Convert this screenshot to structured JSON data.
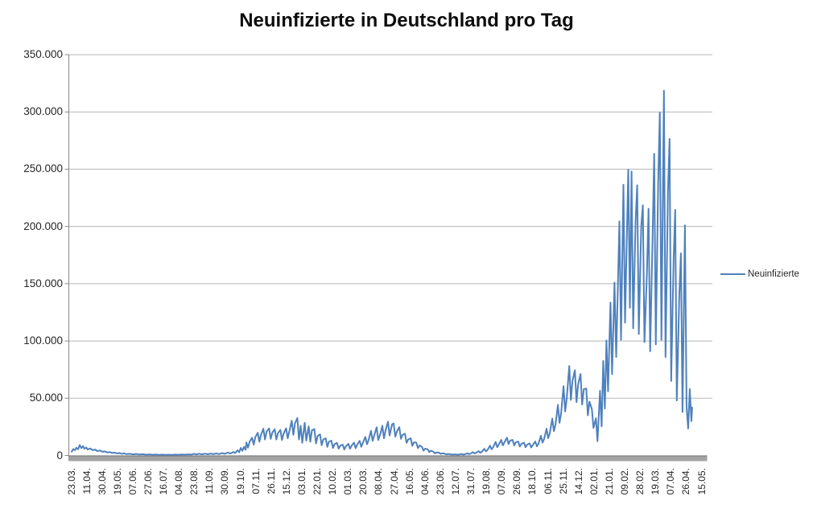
{
  "chart_data": {
    "type": "line",
    "title": "Neuinfizierte in Deutschland pro Tag",
    "legend": [
      "Neuinfizierte"
    ],
    "legend_position": "right",
    "grid": true,
    "background": "#ffffff",
    "ylim": [
      0,
      350000
    ],
    "y_tick_interval": 50000,
    "y_tick_labels": [
      "0",
      "50.000",
      "100.000",
      "150.000",
      "200.000",
      "250.000",
      "300.000",
      "350.000"
    ],
    "x_tick_interval_days": 19,
    "x_tick_labels": [
      "23.03.",
      "11.04.",
      "30.04.",
      "19.05.",
      "07.06.",
      "27.06.",
      "16.07.",
      "04.08.",
      "23.08.",
      "11.09.",
      "30.09.",
      "19.10.",
      "07.11.",
      "26.11.",
      "15.12.",
      "03.01.",
      "22.01.",
      "10.02.",
      "01.03.",
      "20.03.",
      "08.04.",
      "27.04.",
      "16.05.",
      "04.06.",
      "23.06.",
      "12.07.",
      "31.07.",
      "19.08.",
      "07.09.",
      "26.09.",
      "18.10.",
      "06.11.",
      "25.11.",
      "14.12.",
      "02.01.",
      "21.01.",
      "09.02.",
      "28.02.",
      "19.03.",
      "07.04.",
      "26.04.",
      "15.05."
    ],
    "series": [
      {
        "name": "Neuinfizierte",
        "color": "#4F81BD",
        "points": [
          [
            0,
            3200
          ],
          [
            2,
            5600
          ],
          [
            4,
            4600
          ],
          [
            6,
            6800
          ],
          [
            8,
            5400
          ],
          [
            10,
            9200
          ],
          [
            12,
            6400
          ],
          [
            14,
            8200
          ],
          [
            16,
            5800
          ],
          [
            18,
            7000
          ],
          [
            20,
            5200
          ],
          [
            23,
            6200
          ],
          [
            26,
            4600
          ],
          [
            29,
            5200
          ],
          [
            32,
            3800
          ],
          [
            35,
            4400
          ],
          [
            38,
            3200
          ],
          [
            41,
            3600
          ],
          [
            44,
            2600
          ],
          [
            47,
            3000
          ],
          [
            50,
            2200
          ],
          [
            53,
            2500
          ],
          [
            56,
            1800
          ],
          [
            59,
            2100
          ],
          [
            62,
            1500
          ],
          [
            65,
            1800
          ],
          [
            68,
            1200
          ],
          [
            72,
            1500
          ],
          [
            76,
            1000
          ],
          [
            80,
            1300
          ],
          [
            84,
            850
          ],
          [
            88,
            1100
          ],
          [
            92,
            700
          ],
          [
            96,
            950
          ],
          [
            100,
            600
          ],
          [
            104,
            850
          ],
          [
            108,
            550
          ],
          [
            112,
            750
          ],
          [
            116,
            500
          ],
          [
            120,
            700
          ],
          [
            124,
            560
          ],
          [
            128,
            800
          ],
          [
            132,
            620
          ],
          [
            136,
            900
          ],
          [
            140,
            700
          ],
          [
            144,
            1000
          ],
          [
            148,
            800
          ],
          [
            151,
            1500
          ],
          [
            154,
            950
          ],
          [
            158,
            1550
          ],
          [
            161,
            1000
          ],
          [
            165,
            1600
          ],
          [
            168,
            1050
          ],
          [
            172,
            1650
          ],
          [
            175,
            1100
          ],
          [
            179,
            1800
          ],
          [
            182,
            1200
          ],
          [
            186,
            2200
          ],
          [
            189,
            1400
          ],
          [
            193,
            2600
          ],
          [
            196,
            1700
          ],
          [
            200,
            3100
          ],
          [
            202,
            2100
          ],
          [
            205,
            4500
          ],
          [
            207,
            2800
          ],
          [
            209,
            6600
          ],
          [
            211,
            4000
          ],
          [
            213,
            7500
          ],
          [
            215,
            5000
          ],
          [
            216,
            11300
          ],
          [
            218,
            6800
          ],
          [
            220,
            12000
          ],
          [
            223,
            15500
          ],
          [
            225,
            9500
          ],
          [
            227,
            16000
          ],
          [
            230,
            19900
          ],
          [
            232,
            12000
          ],
          [
            234,
            18000
          ],
          [
            237,
            23400
          ],
          [
            239,
            14000
          ],
          [
            241,
            21000
          ],
          [
            244,
            23600
          ],
          [
            246,
            14500
          ],
          [
            248,
            20000
          ],
          [
            251,
            22800
          ],
          [
            253,
            14000
          ],
          [
            255,
            19500
          ],
          [
            258,
            22300
          ],
          [
            260,
            13500
          ],
          [
            262,
            19000
          ],
          [
            265,
            23700
          ],
          [
            267,
            15000
          ],
          [
            269,
            21000
          ],
          [
            272,
            30400
          ],
          [
            274,
            18000
          ],
          [
            276,
            28000
          ],
          [
            279,
            32700
          ],
          [
            281,
            14000
          ],
          [
            283,
            26000
          ],
          [
            285,
            11000
          ],
          [
            288,
            28500
          ],
          [
            290,
            13000
          ],
          [
            293,
            25500
          ],
          [
            295,
            12000
          ],
          [
            297,
            22000
          ],
          [
            300,
            23000
          ],
          [
            302,
            10500
          ],
          [
            304,
            17000
          ],
          [
            307,
            18500
          ],
          [
            309,
            9000
          ],
          [
            311,
            14000
          ],
          [
            314,
            15000
          ],
          [
            316,
            7500
          ],
          [
            318,
            12000
          ],
          [
            321,
            13000
          ],
          [
            323,
            6500
          ],
          [
            325,
            10000
          ],
          [
            328,
            11000
          ],
          [
            330,
            6000
          ],
          [
            332,
            8500
          ],
          [
            335,
            9500
          ],
          [
            337,
            5200
          ],
          [
            339,
            8000
          ],
          [
            342,
            10200
          ],
          [
            344,
            5800
          ],
          [
            346,
            8600
          ],
          [
            349,
            11200
          ],
          [
            351,
            6300
          ],
          [
            353,
            9500
          ],
          [
            356,
            12800
          ],
          [
            358,
            7600
          ],
          [
            360,
            11000
          ],
          [
            363,
            16200
          ],
          [
            365,
            9800
          ],
          [
            367,
            13500
          ],
          [
            370,
            21500
          ],
          [
            372,
            12800
          ],
          [
            374,
            17500
          ],
          [
            377,
            24600
          ],
          [
            379,
            13500
          ],
          [
            382,
            20000
          ],
          [
            384,
            26000
          ],
          [
            386,
            15000
          ],
          [
            388,
            22000
          ],
          [
            391,
            29500
          ],
          [
            393,
            17500
          ],
          [
            396,
            27000
          ],
          [
            398,
            28000
          ],
          [
            400,
            16500
          ],
          [
            402,
            21000
          ],
          [
            405,
            24800
          ],
          [
            407,
            14500
          ],
          [
            409,
            18000
          ],
          [
            412,
            19000
          ],
          [
            414,
            11000
          ],
          [
            416,
            14000
          ],
          [
            419,
            15000
          ],
          [
            421,
            8400
          ],
          [
            423,
            11500
          ],
          [
            426,
            11200
          ],
          [
            428,
            6400
          ],
          [
            430,
            8800
          ],
          [
            433,
            7500
          ],
          [
            435,
            4200
          ],
          [
            437,
            6000
          ],
          [
            440,
            5500
          ],
          [
            442,
            3000
          ],
          [
            444,
            4200
          ],
          [
            447,
            3300
          ],
          [
            449,
            1900
          ],
          [
            451,
            2600
          ],
          [
            454,
            2500
          ],
          [
            456,
            1400
          ],
          [
            458,
            1900
          ],
          [
            461,
            1600
          ],
          [
            463,
            950
          ],
          [
            465,
            1300
          ],
          [
            468,
            1100
          ],
          [
            470,
            680
          ],
          [
            472,
            900
          ],
          [
            475,
            1000
          ],
          [
            477,
            620
          ],
          [
            479,
            850
          ],
          [
            482,
            1300
          ],
          [
            484,
            800
          ],
          [
            486,
            1050
          ],
          [
            489,
            1900
          ],
          [
            491,
            1200
          ],
          [
            493,
            1600
          ],
          [
            496,
            2900
          ],
          [
            498,
            1800
          ],
          [
            500,
            2400
          ],
          [
            503,
            3800
          ],
          [
            505,
            2400
          ],
          [
            507,
            3200
          ],
          [
            510,
            5800
          ],
          [
            512,
            3600
          ],
          [
            514,
            4800
          ],
          [
            517,
            8600
          ],
          [
            519,
            5400
          ],
          [
            521,
            7200
          ],
          [
            524,
            11800
          ],
          [
            526,
            7200
          ],
          [
            528,
            9600
          ],
          [
            531,
            13600
          ],
          [
            533,
            8800
          ],
          [
            535,
            11500
          ],
          [
            538,
            15500
          ],
          [
            540,
            10000
          ],
          [
            542,
            13000
          ],
          [
            545,
            13600
          ],
          [
            547,
            8800
          ],
          [
            549,
            11500
          ],
          [
            552,
            12200
          ],
          [
            554,
            7800
          ],
          [
            556,
            10200
          ],
          [
            559,
            11200
          ],
          [
            561,
            7200
          ],
          [
            563,
            9500
          ],
          [
            566,
            10600
          ],
          [
            568,
            7000
          ],
          [
            570,
            9200
          ],
          [
            573,
            12200
          ],
          [
            575,
            8000
          ],
          [
            577,
            10400
          ],
          [
            580,
            17200
          ],
          [
            582,
            11200
          ],
          [
            584,
            14500
          ],
          [
            587,
            23400
          ],
          [
            589,
            15200
          ],
          [
            591,
            19500
          ],
          [
            594,
            32200
          ],
          [
            596,
            21200
          ],
          [
            598,
            27000
          ],
          [
            601,
            44200
          ],
          [
            603,
            28500
          ],
          [
            605,
            37000
          ],
          [
            608,
            60500
          ],
          [
            610,
            38500
          ],
          [
            612,
            50000
          ],
          [
            615,
            78200
          ],
          [
            617,
            48500
          ],
          [
            619,
            65000
          ],
          [
            622,
            74500
          ],
          [
            624,
            46500
          ],
          [
            626,
            62000
          ],
          [
            629,
            71200
          ],
          [
            631,
            44500
          ],
          [
            633,
            58000
          ],
          [
            636,
            58500
          ],
          [
            638,
            35000
          ],
          [
            640,
            47000
          ],
          [
            643,
            40500
          ],
          [
            645,
            24000
          ],
          [
            648,
            32500
          ],
          [
            650,
            12500
          ],
          [
            653,
            56500
          ],
          [
            655,
            25500
          ],
          [
            657,
            82500
          ],
          [
            659,
            41000
          ],
          [
            661,
            100500
          ],
          [
            663,
            56000
          ],
          [
            666,
            133500
          ],
          [
            668,
            71000
          ],
          [
            671,
            151000
          ],
          [
            673,
            86000
          ],
          [
            677,
            204500
          ],
          [
            679,
            101000
          ],
          [
            682,
            236500
          ],
          [
            684,
            116000
          ],
          [
            688,
            249500
          ],
          [
            690,
            129000
          ],
          [
            692,
            248000
          ],
          [
            694,
            111000
          ],
          [
            697,
            205000
          ],
          [
            699,
            236000
          ],
          [
            701,
            106000
          ],
          [
            704,
            200000
          ],
          [
            706,
            218500
          ],
          [
            708,
            99000
          ],
          [
            711,
            160000
          ],
          [
            713,
            215500
          ],
          [
            715,
            91000
          ],
          [
            718,
            190000
          ],
          [
            720,
            263500
          ],
          [
            722,
            97000
          ],
          [
            725,
            240000
          ],
          [
            727,
            299500
          ],
          [
            729,
            101000
          ],
          [
            732,
            318500
          ],
          [
            734,
            86000
          ],
          [
            737,
            230000
          ],
          [
            739,
            276500
          ],
          [
            741,
            65000
          ],
          [
            744,
            170000
          ],
          [
            746,
            214500
          ],
          [
            748,
            48000
          ],
          [
            751,
            140000
          ],
          [
            753,
            176500
          ],
          [
            755,
            38000
          ],
          [
            758,
            201000
          ],
          [
            760,
            43000
          ],
          [
            762,
            23500
          ],
          [
            764,
            58000
          ],
          [
            766,
            30000
          ],
          [
            767,
            42000
          ]
        ]
      }
    ]
  },
  "colors": {
    "line": "#4F81BD",
    "gridline": "#b7b7b7",
    "axis": "#898989",
    "axis_band": "#a3a3a3",
    "axis_band_edge": "#7f7f7f",
    "label_text": "#262626",
    "title_text": "#0d0d0d"
  }
}
